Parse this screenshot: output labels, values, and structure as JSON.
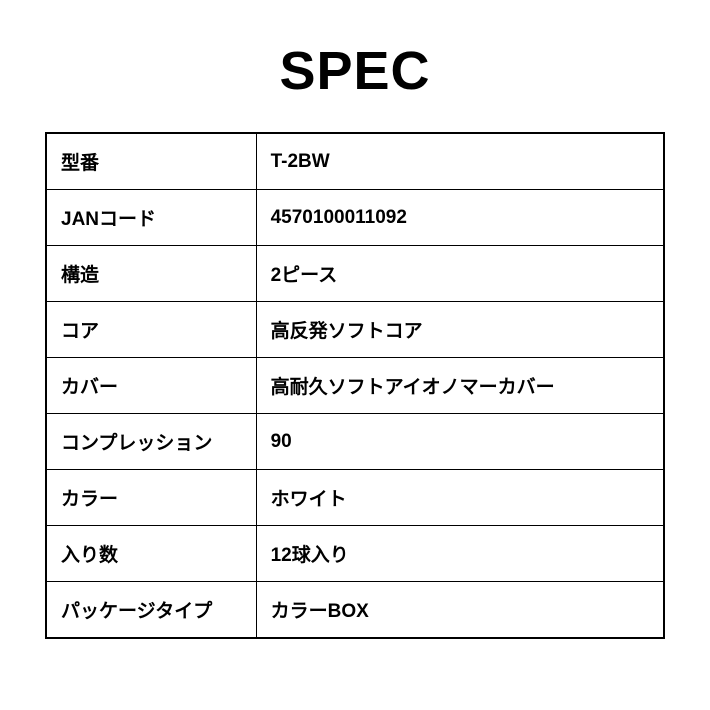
{
  "title": "SPEC",
  "table": {
    "rows": [
      {
        "label": "型番",
        "value": "T-2BW"
      },
      {
        "label": "JANコード",
        "value": "4570100011092"
      },
      {
        "label": "構造",
        "value": "2ピース"
      },
      {
        "label": "コア",
        "value": "高反発ソフトコア"
      },
      {
        "label": "カバー",
        "value": "高耐久ソフトアイオノマーカバー"
      },
      {
        "label": "コンプレッション",
        "value": "90"
      },
      {
        "label": "カラー",
        "value": "ホワイト"
      },
      {
        "label": "入り数",
        "value": "12球入り"
      },
      {
        "label": "パッケージタイプ",
        "value": "カラーBOX"
      }
    ],
    "border_color": "#000000",
    "text_color": "#000000",
    "background_color": "#ffffff",
    "label_fontsize": 19,
    "value_fontsize": 19,
    "font_weight": 600
  },
  "title_style": {
    "fontsize": 54,
    "font_weight": 800,
    "color": "#000000"
  }
}
